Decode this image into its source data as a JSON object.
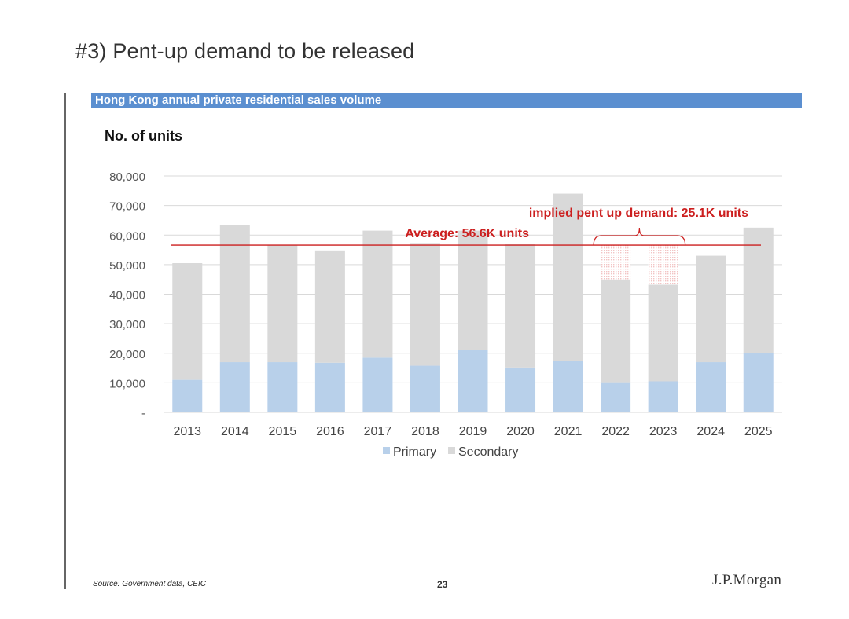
{
  "slide": {
    "title": "#3) Pent-up demand to be released"
  },
  "chart_banner": "Hong Kong annual private residential sales volume",
  "footer": {
    "source": "Source: Government data, CEIC",
    "page": "23",
    "logo": "J.P.Morgan"
  },
  "colors": {
    "primary": "#b8d0ea",
    "secondary": "#d9d9d9",
    "average_line": "#cc1f1f",
    "banner": "#5b8fd0",
    "pent_up_fill": "#f2c4c4"
  },
  "chart_data": {
    "type": "bar",
    "stacked": true,
    "title": "Hong Kong annual private residential sales volume",
    "ylabel": "No. of units",
    "xlabel": "",
    "ylim": [
      0,
      80000
    ],
    "yticks": [
      0,
      10000,
      20000,
      30000,
      40000,
      50000,
      60000,
      70000,
      80000
    ],
    "ytick_labels": [
      "-",
      "10,000",
      "20,000",
      "30,000",
      "40,000",
      "50,000",
      "60,000",
      "70,000",
      "80,000"
    ],
    "grid": true,
    "categories": [
      "2013",
      "2014",
      "2015",
      "2016",
      "2017",
      "2018",
      "2019",
      "2020",
      "2021",
      "2022",
      "2023",
      "2024",
      "2025"
    ],
    "series": [
      {
        "name": "Primary",
        "values": [
          11000,
          17000,
          17000,
          16800,
          18500,
          15800,
          21000,
          15200,
          17300,
          10200,
          10500,
          17000,
          20000
        ]
      },
      {
        "name": "Secondary",
        "values": [
          39500,
          46500,
          39500,
          38000,
          43000,
          41500,
          40500,
          41800,
          56700,
          34800,
          32700,
          36000,
          42500
        ]
      }
    ],
    "legend": [
      "Primary",
      "Secondary"
    ],
    "legend_position": "bottom",
    "average": {
      "value": 56600,
      "label": "Average: 56.6K units"
    },
    "pent_up": {
      "years": [
        "2022",
        "2023"
      ],
      "label": "implied pent up demand: 25.1K units"
    }
  }
}
